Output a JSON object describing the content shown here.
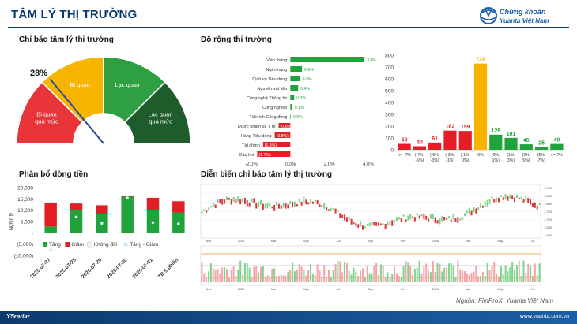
{
  "header": {
    "title": "TÂM LÝ THỊ TRƯỜNG",
    "brand_line1": "Chứng khoán",
    "brand_line2": "Yuanta Việt Nam"
  },
  "sections": {
    "gauge_title": "Chỉ báo tâm lý thị trường",
    "breadth_title": "Độ rộng thị trường",
    "flow_title": "Phân bổ dòng tiền",
    "trend_title": "Diễn biến chỉ báo tâm lý thị trường"
  },
  "gauge": {
    "value_pct": 28,
    "value_label": "28%",
    "zones": [
      {
        "label_lines": [
          "Bi quan",
          "quá mức"
        ],
        "color": "#e8353a"
      },
      {
        "label_lines": [
          "Bi quan"
        ],
        "color": "#f7b500"
      },
      {
        "label_lines": [
          "Lạc quan"
        ],
        "color": "#2ea043"
      },
      {
        "label_lines": [
          "Lạc quan",
          "quá mức"
        ],
        "color": "#1f5c2b"
      }
    ]
  },
  "footer": {
    "source": "Nguồn: FiinProX, Yuanta Việt Nam",
    "left": "Y5radar",
    "right": "www.yuanta.com.vn"
  },
  "chart_data": [
    {
      "type": "bar",
      "orientation": "horizontal",
      "categories": [
        "Viễn thông",
        "Ngân hàng",
        "Dịch vụ Tiêu dùng",
        "Nguyên vật liệu",
        "Công nghệ Thông tin",
        "Công nghiệp",
        "Tiện ích Cộng đồng",
        "Dược phẩm và Y tế",
        "Hàng Tiêu dùng",
        "Tài chính",
        "Dầu khí"
      ],
      "values": [
        3.8,
        0.6,
        0.5,
        0.4,
        0.2,
        0.1,
        0.0,
        -0.6,
        -0.8,
        -1.4,
        -1.7
      ],
      "data_labels": [
        "3.8%",
        "0.6%",
        "0.5%",
        "0.4%",
        "0.2%",
        "0.1%",
        "0.0%",
        "(0.6%)",
        "(0.8%)",
        "(1.4%)",
        "(1.7%)"
      ],
      "xticks": [
        "-2.0%",
        "0.0%",
        "2.0%",
        "4.0%"
      ],
      "xlim": [
        -2.0,
        4.0
      ],
      "colors": {
        "positive": "#1fa33a",
        "negative": "#e21f26"
      }
    },
    {
      "type": "bar",
      "categories": [
        [
          "<= -7%"
        ],
        [
          "(-7%,",
          "-5%)"
        ],
        [
          "(-5%,",
          "-3%)"
        ],
        [
          "(-3%,",
          "-1%)"
        ],
        [
          "(-1%,",
          "0%)"
        ],
        [
          "0%"
        ],
        [
          "(0%,",
          "1%)"
        ],
        [
          "(1%,",
          "3%)"
        ],
        [
          "(3%,",
          "5%)"
        ],
        [
          "(5%,",
          "7%)"
        ],
        [
          ">= 7%"
        ]
      ],
      "values": [
        50,
        30,
        61,
        162,
        159,
        729,
        128,
        101,
        46,
        25,
        49
      ],
      "colors": [
        "#e21f26",
        "#e21f26",
        "#e21f26",
        "#e21f26",
        "#e21f26",
        "#f6b400",
        "#1fa33a",
        "#1fa33a",
        "#1fa33a",
        "#1fa33a",
        "#1fa33a"
      ],
      "yticks": [
        0,
        100,
        200,
        300,
        400,
        500,
        600,
        700,
        800
      ],
      "ylim": [
        0,
        800
      ]
    },
    {
      "type": "bar",
      "stacked": true,
      "categories": [
        "2025-07-27",
        "2025-07-28",
        "2025-07-29",
        "2025-07-30",
        "2025-07-31",
        "TB 5 phiên"
      ],
      "series": [
        {
          "name": "Tăng",
          "color": "#1fa33a",
          "values": [
            2800,
            10000,
            8200,
            16000,
            10000,
            9000
          ]
        },
        {
          "name": "Giảm",
          "color": "#e21f26",
          "values": [
            10500,
            3000,
            4000,
            500,
            5500,
            5000
          ]
        },
        {
          "name": "Không đổi",
          "color": "#f2f2f2",
          "values": [
            500,
            400,
            500,
            400,
            500,
            400
          ]
        }
      ],
      "net": {
        "name": "Tăng - Giảm",
        "values": [
          -7700,
          7000,
          4200,
          15500,
          4500,
          4000
        ]
      },
      "yticks": [
        "20,000",
        "15,000",
        "10,000",
        "5,000",
        "-",
        "(5,000)",
        "(10,000)"
      ],
      "ylim": [
        -10000,
        20000
      ],
      "ylabel": "Nghìn tỷ"
    },
    {
      "type": "line",
      "note": "price candlestick panel with sentiment oscillator below",
      "x_ticks": [
        "Nov",
        "2026",
        "Mar",
        "May",
        "Jul",
        "Sep",
        "Nov",
        "2026",
        "Mar",
        "May",
        "Jul"
      ],
      "price_y_ticks": [
        "1,900",
        "1,850",
        "1,800",
        "1,750",
        "1,700",
        "1,650",
        "1,600"
      ]
    }
  ]
}
